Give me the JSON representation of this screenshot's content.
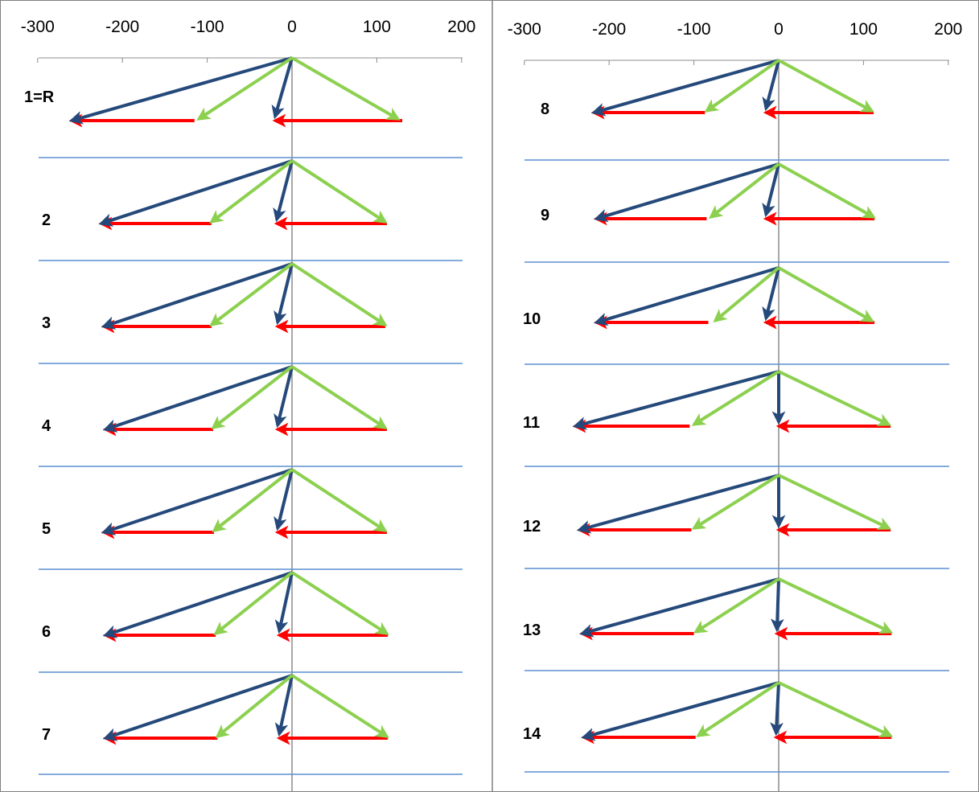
{
  "colors": {
    "dark_blue": "#24497a",
    "light_green": "#8cd04f",
    "red": "#ff0000",
    "separator": "#5b8fd0",
    "axis": "#8c8c8c",
    "frame": "#808080"
  },
  "axis": {
    "ticks": [
      -300,
      -200,
      -100,
      0,
      100,
      200
    ],
    "tick_labels": [
      "-300",
      "-200",
      "-100",
      "0",
      "100",
      "200"
    ],
    "range": [
      -300,
      200
    ]
  },
  "panels": [
    {
      "rows": [
        {
          "label": "1=R",
          "blue_left": [
            -260,
            -80
          ],
          "green_left": [
            -110,
            -80
          ],
          "blue_short": [
            -20,
            -80
          ],
          "green_right": [
            125,
            -80
          ],
          "red_long": [
            -115,
            -260
          ],
          "red_short": [
            130,
            -20
          ]
        },
        {
          "label": "2",
          "blue_left": [
            -225,
            -70
          ],
          "green_left": [
            -95,
            -70
          ],
          "blue_short": [
            -18,
            -70
          ],
          "green_right": [
            110,
            -70
          ],
          "red_long": [
            -95,
            -225
          ],
          "red_short": [
            112,
            -18
          ]
        },
        {
          "label": "3",
          "blue_left": [
            -222,
            -70
          ],
          "green_left": [
            -95,
            -70
          ],
          "blue_short": [
            -17,
            -70
          ],
          "green_right": [
            110,
            -70
          ],
          "red_long": [
            -95,
            -222
          ],
          "red_short": [
            110,
            -17
          ]
        },
        {
          "label": "4",
          "blue_left": [
            -220,
            -70
          ],
          "green_left": [
            -93,
            -70
          ],
          "blue_short": [
            -17,
            -70
          ],
          "green_right": [
            110,
            -70
          ],
          "red_long": [
            -93,
            -220
          ],
          "red_short": [
            112,
            -17
          ]
        },
        {
          "label": "5",
          "blue_left": [
            -222,
            -70
          ],
          "green_left": [
            -92,
            -70
          ],
          "blue_short": [
            -17,
            -70
          ],
          "green_right": [
            110,
            -70
          ],
          "red_long": [
            -92,
            -222
          ],
          "red_short": [
            112,
            -17
          ]
        },
        {
          "label": "6",
          "blue_left": [
            -220,
            -70
          ],
          "green_left": [
            -90,
            -70
          ],
          "blue_short": [
            -15,
            -70
          ],
          "green_right": [
            112,
            -70
          ],
          "red_long": [
            -90,
            -220
          ],
          "red_short": [
            113,
            -15
          ]
        },
        {
          "label": "7",
          "blue_left": [
            -220,
            -70
          ],
          "green_left": [
            -88,
            -70
          ],
          "blue_short": [
            -15,
            -70
          ],
          "green_right": [
            112,
            -70
          ],
          "red_long": [
            -88,
            -220
          ],
          "red_short": [
            113,
            -15
          ]
        }
      ]
    },
    {
      "rows": [
        {
          "label": "8",
          "blue_left": [
            -218,
            -70
          ],
          "green_left": [
            -85,
            -70
          ],
          "blue_short": [
            -15,
            -70
          ],
          "green_right": [
            110,
            -70
          ],
          "red_long": [
            -87,
            -218
          ],
          "red_short": [
            112,
            -15
          ]
        },
        {
          "label": "9",
          "blue_left": [
            -215,
            -70
          ],
          "green_left": [
            -80,
            -70
          ],
          "blue_short": [
            -15,
            -70
          ],
          "green_right": [
            112,
            -70
          ],
          "red_long": [
            -85,
            -215
          ],
          "red_short": [
            113,
            -15
          ]
        },
        {
          "label": "10",
          "blue_left": [
            -215,
            -70
          ],
          "green_left": [
            -75,
            -70
          ],
          "blue_short": [
            -15,
            -70
          ],
          "green_right": [
            110,
            -70
          ],
          "red_long": [
            -83,
            -215
          ],
          "red_short": [
            113,
            -15
          ]
        },
        {
          "label": "11",
          "blue_left": [
            -240,
            -70
          ],
          "green_left": [
            -100,
            -70
          ],
          "blue_short": [
            0,
            -70
          ],
          "green_right": [
            130,
            -70
          ],
          "red_long": [
            -105,
            -240
          ],
          "red_short": [
            132,
            0
          ]
        },
        {
          "label": "12",
          "blue_left": [
            -235,
            -70
          ],
          "green_left": [
            -100,
            -70
          ],
          "blue_short": [
            0,
            -70
          ],
          "green_right": [
            130,
            -70
          ],
          "red_long": [
            -103,
            -235
          ],
          "red_short": [
            132,
            0
          ]
        },
        {
          "label": "13",
          "blue_left": [
            -232,
            -70
          ],
          "green_left": [
            -98,
            -70
          ],
          "blue_short": [
            -2,
            -70
          ],
          "green_right": [
            132,
            -70
          ],
          "red_long": [
            -100,
            -232
          ],
          "red_short": [
            133,
            -2
          ]
        },
        {
          "label": "14",
          "blue_left": [
            -230,
            -70
          ],
          "green_left": [
            -95,
            -70
          ],
          "blue_short": [
            -3,
            -70
          ],
          "green_right": [
            132,
            -70
          ],
          "red_long": [
            -98,
            -230
          ],
          "red_short": [
            133,
            -3
          ]
        }
      ]
    }
  ]
}
